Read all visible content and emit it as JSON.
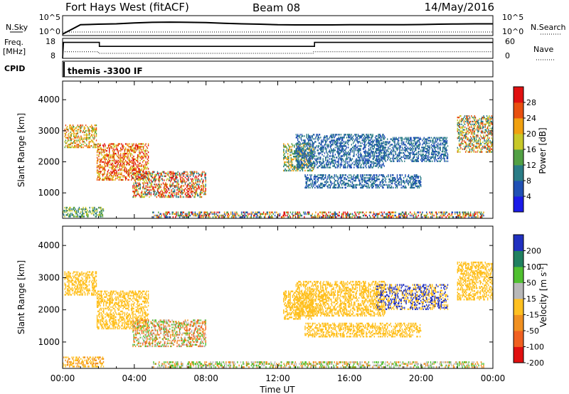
{
  "header": {
    "title": "Fort Hays West (fitACF)",
    "beam": "Beam 08",
    "date": "14/May/2016"
  },
  "top_panels": {
    "noise": {
      "left_label": "N.Sky",
      "left_ticks": [
        "10^5",
        "10^0"
      ],
      "right_label": "N.Search",
      "right_ticks": [
        "10^5",
        "10^0"
      ]
    },
    "freq": {
      "left_label_1": "Freq.",
      "left_label_2": "[MHz]",
      "left_ticks": [
        "18",
        "8"
      ],
      "right_label": "Nave",
      "right_ticks": [
        "60",
        "0"
      ]
    },
    "cpid": {
      "label": "CPID",
      "program": "themis -3300 IF"
    }
  },
  "time_axis": {
    "ticks": [
      "00:00",
      "04:00",
      "08:00",
      "12:00",
      "16:00",
      "20:00",
      "00:00"
    ],
    "label": "Time UT"
  },
  "power_colorbar": {
    "label": "Power [dB]",
    "ticks": [
      "28",
      "24",
      "20",
      "16",
      "12",
      "8",
      "4"
    ],
    "colors": [
      "#1b1be8",
      "#2050b4",
      "#2a7c86",
      "#52a044",
      "#c8c828",
      "#f0a010",
      "#e85010",
      "#e01010"
    ]
  },
  "velocity_colorbar": {
    "label": "Velocity [m s^-1]",
    "ticks": [
      "200",
      "100",
      "50",
      "15",
      "-15",
      "-50",
      "-100",
      "-200"
    ],
    "colors": [
      "#2030c0",
      "#208060",
      "#50c030",
      "#b8b8b8",
      "#ffc020",
      "#f09020",
      "#f06020",
      "#e01010"
    ]
  },
  "chart_data": [
    {
      "type": "line",
      "title": "",
      "series": [
        {
          "name": "N.Sky",
          "x": [
            0,
            1,
            2,
            3,
            4,
            5,
            6,
            7,
            8,
            9,
            10,
            11,
            12,
            13,
            14,
            15,
            16,
            17,
            18,
            19,
            20,
            21,
            22,
            23,
            24
          ],
          "values": [
            1,
            1000,
            1500,
            2000,
            4000,
            6000,
            7000,
            6000,
            5000,
            3000,
            2000,
            1500,
            1000,
            900,
            900,
            900,
            1000,
            1000,
            1000,
            1000,
            1200,
            1500,
            1800,
            2000,
            2000
          ]
        },
        {
          "name": "N.Search",
          "x": [
            0,
            24
          ],
          "values": [
            1,
            1
          ]
        }
      ],
      "xlim": [
        0,
        24
      ],
      "ylim": [
        1,
        100000
      ],
      "yscale": "log"
    },
    {
      "type": "line",
      "title": "",
      "series": [
        {
          "name": "Freq.",
          "x": [
            0,
            0.05,
            2.05,
            2.05,
            14.05,
            14.05,
            24
          ],
          "values": [
            8,
            16,
            16,
            14,
            14,
            16,
            16
          ]
        },
        {
          "name": "Nave",
          "x": [
            0,
            2,
            2,
            14,
            14,
            24
          ],
          "values": [
            20,
            20,
            15,
            15,
            20,
            20
          ]
        }
      ],
      "xlim": [
        0,
        24
      ],
      "ylim_left": [
        8,
        18
      ],
      "ylim_right": [
        0,
        60
      ]
    },
    {
      "type": "heatmap",
      "title": "",
      "ylabel": "Slant Range [km]",
      "xlabel": "",
      "xlim": [
        0,
        24
      ],
      "ylim": [
        180,
        4600
      ],
      "yticks": [
        1000,
        2000,
        3000,
        4000
      ],
      "colorbar": {
        "label": "Power [dB]",
        "range": [
          0,
          32
        ]
      },
      "regions": [
        {
          "t0": 0.1,
          "t1": 1.9,
          "r0": 2450,
          "r1": 3200,
          "values": [
            12,
            16,
            20,
            24
          ]
        },
        {
          "t0": 1.9,
          "t1": 4.8,
          "r0": 1400,
          "r1": 2600,
          "values": [
            16,
            20,
            24,
            28
          ]
        },
        {
          "t0": 3.9,
          "t1": 8.0,
          "r0": 850,
          "r1": 1700,
          "values": [
            8,
            16,
            24,
            28
          ]
        },
        {
          "t0": 0.0,
          "t1": 2.3,
          "r0": 220,
          "r1": 550,
          "values": [
            8,
            12,
            16
          ]
        },
        {
          "t0": 5.0,
          "t1": 23.5,
          "r0": 200,
          "r1": 400,
          "values": [
            4,
            12,
            20,
            28
          ]
        },
        {
          "t0": 12.3,
          "t1": 14.0,
          "r0": 1700,
          "r1": 2600,
          "values": [
            8,
            12,
            20
          ]
        },
        {
          "t0": 13.0,
          "t1": 18.0,
          "r0": 1800,
          "r1": 2900,
          "values": [
            4,
            8
          ]
        },
        {
          "t0": 17.5,
          "t1": 21.5,
          "r0": 2000,
          "r1": 2800,
          "values": [
            4,
            8
          ]
        },
        {
          "t0": 13.5,
          "t1": 20.0,
          "r0": 1150,
          "r1": 1600,
          "values": [
            4,
            8
          ]
        },
        {
          "t0": 22.0,
          "t1": 24.0,
          "r0": 2300,
          "r1": 3500,
          "values": [
            8,
            16,
            24
          ]
        }
      ]
    },
    {
      "type": "heatmap",
      "title": "",
      "ylabel": "Slant Range [km]",
      "xlabel": "Time UT",
      "xlim": [
        0,
        24
      ],
      "ylim": [
        180,
        4600
      ],
      "yticks": [
        1000,
        2000,
        3000,
        4000
      ],
      "colorbar": {
        "label": "Velocity [m s^-1]",
        "range": [
          -250,
          250
        ]
      },
      "regions": [
        {
          "t0": 0.1,
          "t1": 1.9,
          "r0": 2450,
          "r1": 3200,
          "values": [
            0,
            10
          ]
        },
        {
          "t0": 1.9,
          "t1": 4.8,
          "r0": 1400,
          "r1": 2600,
          "values": [
            0,
            -10
          ]
        },
        {
          "t0": 3.9,
          "t1": 8.0,
          "r0": 850,
          "r1": 1700,
          "values": [
            -30,
            -40,
            30,
            60
          ]
        },
        {
          "t0": 0.0,
          "t1": 2.3,
          "r0": 220,
          "r1": 550,
          "values": [
            0,
            -20
          ]
        },
        {
          "t0": 5.0,
          "t1": 23.5,
          "r0": 200,
          "r1": 400,
          "values": [
            -20,
            20,
            60
          ]
        },
        {
          "t0": 12.3,
          "t1": 14.0,
          "r0": 1700,
          "r1": 2600,
          "values": [
            0,
            10
          ]
        },
        {
          "t0": 13.0,
          "t1": 18.0,
          "r0": 1800,
          "r1": 2900,
          "values": [
            0
          ]
        },
        {
          "t0": 17.5,
          "t1": 21.5,
          "r0": 2000,
          "r1": 2800,
          "values": [
            0,
            150
          ]
        },
        {
          "t0": 13.5,
          "t1": 20.0,
          "r0": 1150,
          "r1": 1600,
          "values": [
            0
          ]
        },
        {
          "t0": 22.0,
          "t1": 24.0,
          "r0": 2300,
          "r1": 3500,
          "values": [
            0,
            10
          ]
        }
      ]
    }
  ]
}
